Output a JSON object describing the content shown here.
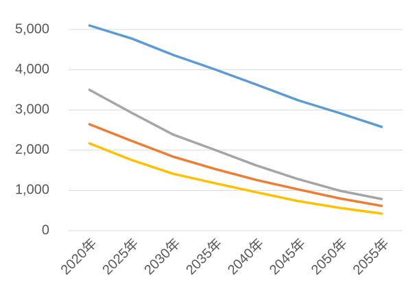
{
  "chart_data": {
    "type": "line",
    "categories": [
      "2020年",
      "2025年",
      "2030年",
      "2035年",
      "2040年",
      "2045年",
      "2050年",
      "2055年"
    ],
    "series": [
      {
        "color": "#5b9bd5",
        "values": [
          5100,
          4780,
          4370,
          4010,
          3630,
          3240,
          2920,
          2580
        ]
      },
      {
        "color": "#a5a5a5",
        "values": [
          3500,
          2935,
          2390,
          2010,
          1620,
          1280,
          990,
          785
        ]
      },
      {
        "color": "#ed7d31",
        "values": [
          2645,
          2235,
          1840,
          1535,
          1260,
          1025,
          800,
          615
        ]
      },
      {
        "color": "#ffc000",
        "values": [
          2170,
          1760,
          1415,
          1180,
          955,
          735,
          565,
          425
        ]
      }
    ],
    "ylim": [
      0,
      5000
    ],
    "yticks": [
      0,
      {
        "value": 1000,
        "label": "1,000"
      },
      {
        "value": 2000,
        "label": "2,000"
      },
      {
        "value": 3000,
        "label": "3,000"
      },
      {
        "value": 4000,
        "label": "4,000"
      },
      {
        "value": 5000,
        "label": "5,000"
      }
    ],
    "grid": true
  }
}
